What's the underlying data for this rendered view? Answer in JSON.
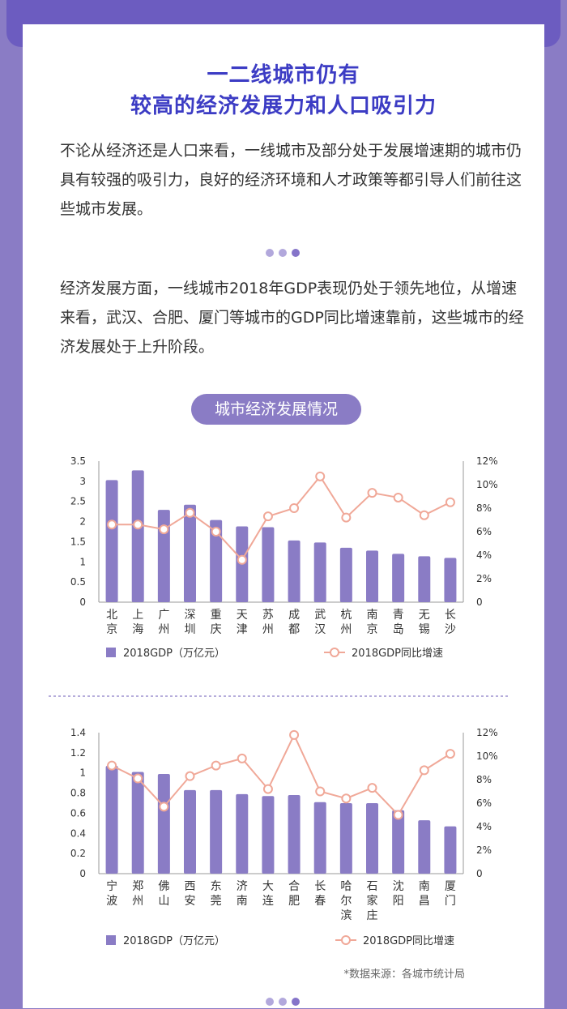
{
  "title": {
    "line1": "一二线城市仍有",
    "line2": "较高的经济发展力和人口吸引力"
  },
  "paragraphs": [
    "不论从经济还是人口来看，一线城市及部分处于发展增速期的城市仍具有较强的吸引力，良好的经济环境和人才政策等都引导人们前往这些城市发展。",
    "经济发展方面，一线城市2018年GDP表现仍处于领先地位，从增速来看，武汉、合肥、厦门等城市的GDP同比增速靠前，这些城市的经济发展处于上升阶段。"
  ],
  "section_label": "城市经济发展情况",
  "source": "*数据来源：各城市统计局",
  "colors": {
    "bar": "#8a7cc5",
    "line": "#f0a898",
    "title": "#3c3cc4"
  },
  "chart_data": [
    {
      "type": "bar+line",
      "categories": [
        "北京",
        "上海",
        "广州",
        "深圳",
        "重庆",
        "天津",
        "苏州",
        "成都",
        "武汉",
        "杭州",
        "南京",
        "青岛",
        "无锡",
        "长沙"
      ],
      "series": [
        {
          "name": "2018GDP（万亿元）",
          "type": "bar",
          "axis": "left",
          "values": [
            3.03,
            3.27,
            2.29,
            2.42,
            2.04,
            1.88,
            1.86,
            1.53,
            1.48,
            1.35,
            1.28,
            1.2,
            1.14,
            1.1
          ]
        },
        {
          "name": "2018GDP同比增速",
          "type": "line",
          "axis": "right",
          "values": [
            6.6,
            6.6,
            6.2,
            7.6,
            6.0,
            3.6,
            7.3,
            8.0,
            10.7,
            7.2,
            9.3,
            8.9,
            7.4,
            8.5
          ]
        }
      ],
      "y_left": {
        "min": 0,
        "max": 3.5,
        "ticks": [
          "0",
          "0.5",
          "1",
          "1.5",
          "2",
          "2.5",
          "3",
          "3.5"
        ]
      },
      "y_right": {
        "min": 0,
        "max": 12,
        "ticks": [
          "0",
          "2%",
          "4%",
          "6%",
          "8%",
          "10%",
          "12%"
        ]
      },
      "legend_position": "bottom"
    },
    {
      "type": "bar+line",
      "categories": [
        "宁波",
        "郑州",
        "佛山",
        "西安",
        "东莞",
        "济南",
        "大连",
        "合肥",
        "长春",
        "哈尔滨",
        "石家庄",
        "沈阳",
        "南昌",
        "厦门"
      ],
      "series": [
        {
          "name": "2018GDP（万亿元）",
          "type": "bar",
          "axis": "left",
          "values": [
            1.07,
            1.01,
            0.99,
            0.83,
            0.83,
            0.79,
            0.77,
            0.78,
            0.71,
            0.7,
            0.7,
            0.63,
            0.53,
            0.47
          ]
        },
        {
          "name": "2018GDP同比增速",
          "type": "line",
          "axis": "right",
          "values": [
            9.2,
            8.1,
            5.7,
            8.3,
            9.2,
            9.8,
            7.2,
            11.8,
            7.0,
            6.4,
            7.3,
            5.0,
            8.8,
            10.2
          ]
        }
      ],
      "y_left": {
        "min": 0,
        "max": 1.4,
        "ticks": [
          "0",
          "0.2",
          "0.4",
          "0.6",
          "0.8",
          "1",
          "1.2",
          "1.4"
        ]
      },
      "y_right": {
        "min": 0,
        "max": 12,
        "ticks": [
          "0",
          "2%",
          "4%",
          "6%",
          "8%",
          "10%",
          "12%"
        ]
      },
      "legend_position": "bottom"
    }
  ]
}
